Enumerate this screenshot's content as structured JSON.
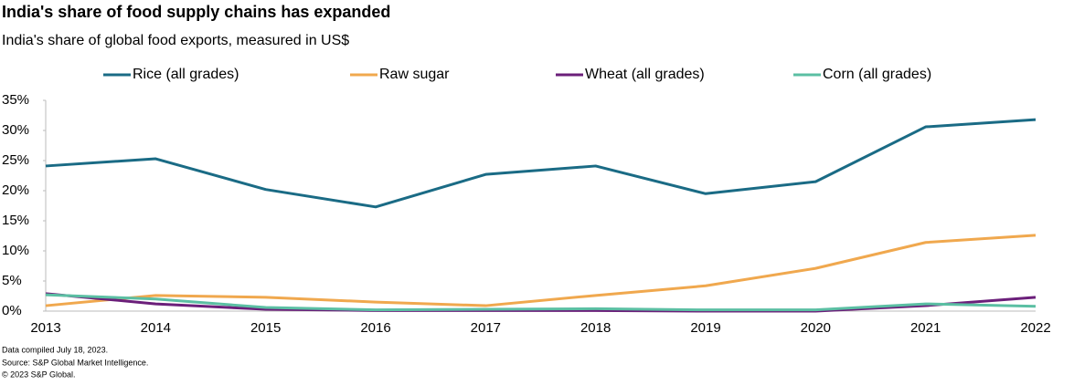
{
  "chart_data": {
    "type": "line",
    "title": "India's share of food supply chains has expanded",
    "subtitle": "India's share of global food exports, measured in US$",
    "notes": [
      "Data compiled July 18, 2023.",
      "Source: S&P Global Market Intelligence.",
      "© 2023 S&P Global."
    ],
    "categories": [
      "2013",
      "2014",
      "2015",
      "2016",
      "2017",
      "2018",
      "2019",
      "2020",
      "2021",
      "2022"
    ],
    "series": [
      {
        "name": "Rice (all grades)",
        "color": "#1a6b85",
        "values": [
          24.1,
          25.3,
          20.2,
          17.3,
          22.7,
          24.1,
          19.5,
          21.5,
          30.6,
          31.8
        ]
      },
      {
        "name": "Raw sugar",
        "color": "#f0a84e",
        "values": [
          0.9,
          2.6,
          2.3,
          1.5,
          0.9,
          2.6,
          4.2,
          7.1,
          11.4,
          12.6
        ]
      },
      {
        "name": "Wheat (all grades)",
        "color": "#6b1f7a",
        "values": [
          2.9,
          1.2,
          0.3,
          0.1,
          0.1,
          0.1,
          0,
          0,
          0.9,
          2.3
        ]
      },
      {
        "name": "Corn (all grades)",
        "color": "#5bbfa3",
        "values": [
          2.7,
          2.0,
          0.6,
          0.2,
          0.3,
          0.4,
          0.2,
          0.2,
          1.2,
          0.8
        ]
      }
    ],
    "ylim": [
      0,
      35
    ],
    "yticks": [
      {
        "value": 0,
        "label": "0%"
      },
      {
        "value": 5,
        "label": "5%"
      },
      {
        "value": 10,
        "label": "10%"
      },
      {
        "value": 15,
        "label": "15%"
      },
      {
        "value": 20,
        "label": "20%"
      },
      {
        "value": 25,
        "label": "25%"
      },
      {
        "value": 30,
        "label": "30%"
      },
      {
        "value": 35,
        "label": "35%"
      }
    ],
    "grid": false
  }
}
